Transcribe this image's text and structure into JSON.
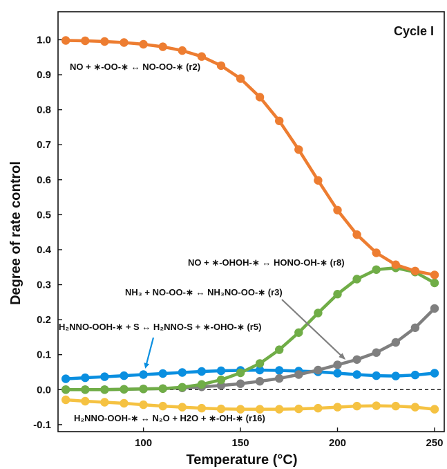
{
  "chart_data": {
    "type": "line",
    "title": "",
    "xlabel": "Temperature (°C)",
    "ylabel": "Degree of rate control",
    "xlim": [
      56,
      255
    ],
    "ylim": [
      -0.12,
      1.08
    ],
    "x_ticks": [
      "100",
      "150",
      "200",
      "250"
    ],
    "y_ticks": [
      "-0.1",
      "0.0",
      "0.1",
      "0.2",
      "0.3",
      "0.4",
      "0.5",
      "0.6",
      "0.7",
      "0.8",
      "0.9",
      "1.0"
    ],
    "zero_line": true,
    "panel_label": "Cycle I",
    "x": [
      60,
      70,
      80,
      90,
      100,
      110,
      120,
      130,
      140,
      150,
      160,
      170,
      180,
      190,
      200,
      210,
      220,
      230,
      240,
      250
    ],
    "series": [
      {
        "key": "r2",
        "color": "#ED7D31",
        "values": [
          0.998,
          0.997,
          0.995,
          0.992,
          0.987,
          0.98,
          0.969,
          0.952,
          0.926,
          0.889,
          0.836,
          0.768,
          0.686,
          0.598,
          0.513,
          0.443,
          0.391,
          0.357,
          0.339,
          0.328
        ]
      },
      {
        "key": "r8",
        "color": "#70AD47",
        "values": [
          0.0,
          0.0,
          0.0,
          0.001,
          0.002,
          0.003,
          0.007,
          0.015,
          0.028,
          0.048,
          0.075,
          0.114,
          0.163,
          0.219,
          0.273,
          0.316,
          0.343,
          0.348,
          0.336,
          0.305
        ]
      },
      {
        "key": "r3",
        "color": "#7F7F7F",
        "values": [
          0.0,
          0.0,
          0.0,
          0.001,
          0.002,
          0.003,
          0.005,
          0.008,
          0.012,
          0.017,
          0.024,
          0.032,
          0.043,
          0.056,
          0.071,
          0.086,
          0.106,
          0.135,
          0.177,
          0.232
        ]
      },
      {
        "key": "r5",
        "color": "#0A8FE0",
        "values": [
          0.031,
          0.034,
          0.037,
          0.04,
          0.043,
          0.046,
          0.049,
          0.052,
          0.054,
          0.055,
          0.056,
          0.055,
          0.053,
          0.051,
          0.047,
          0.043,
          0.04,
          0.039,
          0.042,
          0.047
        ]
      },
      {
        "key": "r16",
        "color": "#F5C242",
        "values": [
          -0.029,
          -0.033,
          -0.036,
          -0.039,
          -0.043,
          -0.047,
          -0.05,
          -0.053,
          -0.055,
          -0.056,
          -0.056,
          -0.056,
          -0.055,
          -0.053,
          -0.05,
          -0.047,
          -0.046,
          -0.047,
          -0.05,
          -0.056
        ]
      }
    ],
    "annotations": [
      {
        "key": "r2",
        "text": "NO + ∗-OO-∗ ↔ NO-OO-∗ (r2)"
      },
      {
        "key": "r8",
        "text": "NO + ∗-OHOH-∗ ↔ HONO-OH-∗ (r8)"
      },
      {
        "key": "r3",
        "text": "NH₃ + NO-OO-∗ ↔ NH₃NO-OO-∗ (r3)"
      },
      {
        "key": "r5",
        "text": "H₂NNO-OOH-∗ + S ↔ H₂NNO-S + ∗-OHO-∗ (r5)"
      },
      {
        "key": "r16",
        "text": "H₂NNO-OOH-∗ ↔ N₂O + H2O + ∗-OH-∗ (r16)"
      }
    ]
  }
}
